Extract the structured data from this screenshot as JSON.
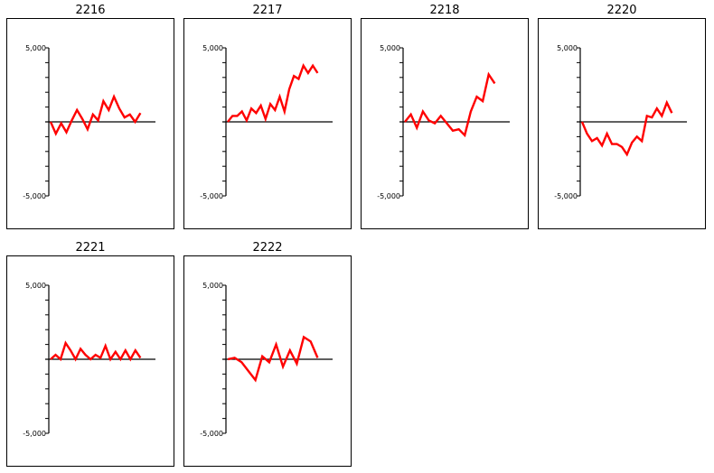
{
  "chart_data": [
    {
      "type": "line",
      "title": "2216",
      "ylim": [
        -5000,
        5000
      ],
      "yticks": [
        5000,
        -5000
      ],
      "ytick_labels": [
        "5,000",
        "-5,000"
      ],
      "color": "#ff0000",
      "values": [
        0,
        -800,
        -100,
        -700,
        100,
        800,
        200,
        -500,
        500,
        100,
        1400,
        800,
        1700,
        900,
        300,
        500,
        0,
        600
      ]
    },
    {
      "type": "line",
      "title": "2217",
      "ylim": [
        -5000,
        5000
      ],
      "yticks": [
        5000,
        -5000
      ],
      "ytick_labels": [
        "5,000",
        "-5,000"
      ],
      "color": "#ff0000",
      "values": [
        0,
        400,
        400,
        700,
        100,
        900,
        600,
        1100,
        200,
        1200,
        800,
        1700,
        700,
        2200,
        3100,
        2900,
        3800,
        3300,
        3800,
        3300
      ]
    },
    {
      "type": "line",
      "title": "2218",
      "ylim": [
        -5000,
        5000
      ],
      "yticks": [
        5000,
        -5000
      ],
      "ytick_labels": [
        "5,000",
        "-5,000"
      ],
      "color": "#ff0000",
      "values": [
        0,
        500,
        -400,
        700,
        100,
        -100,
        400,
        -100,
        -600,
        -500,
        -900,
        700,
        1700,
        1400,
        3200,
        2600
      ]
    },
    {
      "type": "line",
      "title": "2220",
      "ylim": [
        -5000,
        5000
      ],
      "yticks": [
        5000,
        -5000
      ],
      "ytick_labels": [
        "5,000",
        "-5,000"
      ],
      "color": "#ff0000",
      "values": [
        0,
        -800,
        -1300,
        -1100,
        -1600,
        -800,
        -1500,
        -1500,
        -1700,
        -2200,
        -1400,
        -1000,
        -1300,
        400,
        300,
        900,
        400,
        1300,
        600
      ]
    },
    {
      "type": "line",
      "title": "2221",
      "ylim": [
        -5000,
        5000
      ],
      "yticks": [
        5000,
        -5000
      ],
      "ytick_labels": [
        "5,000",
        "-5,000"
      ],
      "color": "#ff0000",
      "values": [
        0,
        300,
        0,
        1100,
        600,
        0,
        700,
        300,
        0,
        300,
        100,
        900,
        0,
        500,
        0,
        600,
        0,
        600,
        100
      ]
    },
    {
      "type": "line",
      "title": "2222",
      "ylim": [
        -5000,
        5000
      ],
      "yticks": [
        5000,
        -5000
      ],
      "ytick_labels": [
        "5,000",
        "-5,000"
      ],
      "color": "#ff0000",
      "values": [
        0,
        100,
        -200,
        -800,
        -1400,
        200,
        -200,
        1000,
        -500,
        600,
        -300,
        1500,
        1200,
        100
      ]
    }
  ]
}
